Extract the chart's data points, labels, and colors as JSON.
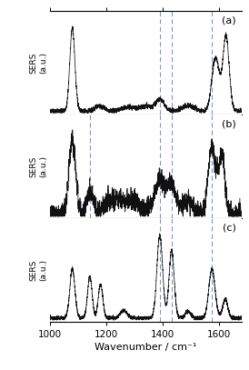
{
  "xmin": 1000,
  "xmax": 1680,
  "xticks": [
    1000,
    1200,
    1400,
    1600
  ],
  "xlabel": "Wavenumber / cm⁻¹",
  "ylabel_top": "SERS",
  "ylabel_bot": "(a.u.)",
  "panel_labels": [
    "(a)",
    "(b)",
    "(c)"
  ],
  "dashed_lines_a": [
    1390,
    1432,
    1575
  ],
  "dashed_lines_b": [
    1142,
    1390,
    1432,
    1575
  ],
  "dashed_lines_c": [
    1390,
    1432,
    1575
  ],
  "line_color": "#111111",
  "dashed_color": "#6688cc",
  "background": "#ffffff",
  "figsize": [
    2.74,
    4.07
  ],
  "dpi": 100
}
